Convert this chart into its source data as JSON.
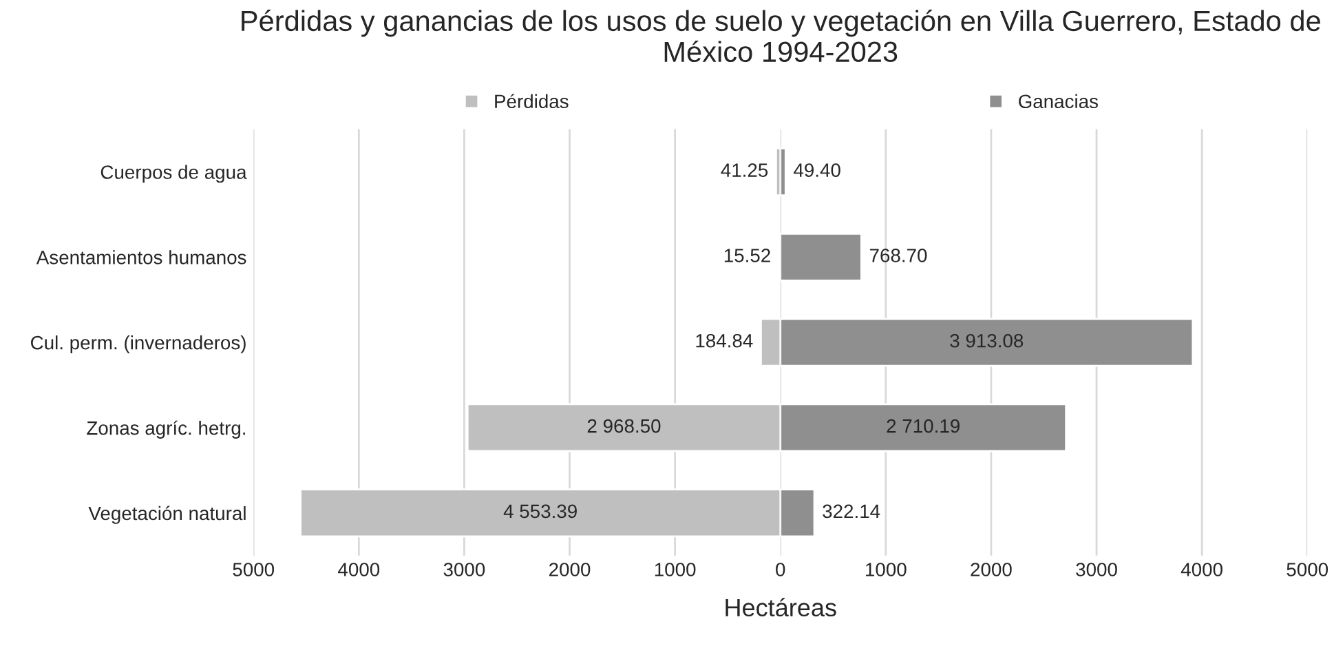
{
  "chart_data": [
    {
      "type": "bar",
      "orientation": "horizontal",
      "title": "Pérdidas y ganancias de los usos de suelo y vegetación en Villa Guerrero, Estado de México 1994-2023",
      "categories": [
        "Cuerpos de agua",
        "Asentamientos humanos",
        "Cul. perm. (invernaderos)",
        "Zonas agríc. hetrg.",
        "Vegetación natural"
      ],
      "series": [
        {
          "name": "Pérdidas",
          "color": "#bfbfbf",
          "values": [
            41.25,
            15.52,
            184.84,
            2968.5,
            4553.39
          ],
          "value_labels": [
            "41.25",
            "15.52",
            "184.84",
            "2 968.50",
            "4 553.39"
          ]
        }
      ],
      "xlim": [
        5000,
        0
      ],
      "xticks": [
        5000,
        4000,
        3000,
        2000,
        1000
      ],
      "grid": "x",
      "legend": "top"
    },
    {
      "type": "bar",
      "orientation": "horizontal",
      "xlabel": "Hectáreas",
      "categories": [
        null,
        null,
        null,
        null,
        null
      ],
      "series": [
        {
          "name": "Ganacias",
          "color": "#8f8f8f",
          "values": [
            49.4,
            768.7,
            3913.08,
            2710.19,
            322.14
          ],
          "value_labels": [
            "49.40",
            "768.70",
            "3 913.08",
            "2 710.19",
            "322.14"
          ]
        }
      ],
      "xlim": [
        0,
        5000
      ],
      "xticks": [
        0,
        1000,
        2000,
        3000,
        4000,
        5000
      ],
      "grid": "x",
      "legend": "top",
      "tick_labels": "x"
    }
  ]
}
